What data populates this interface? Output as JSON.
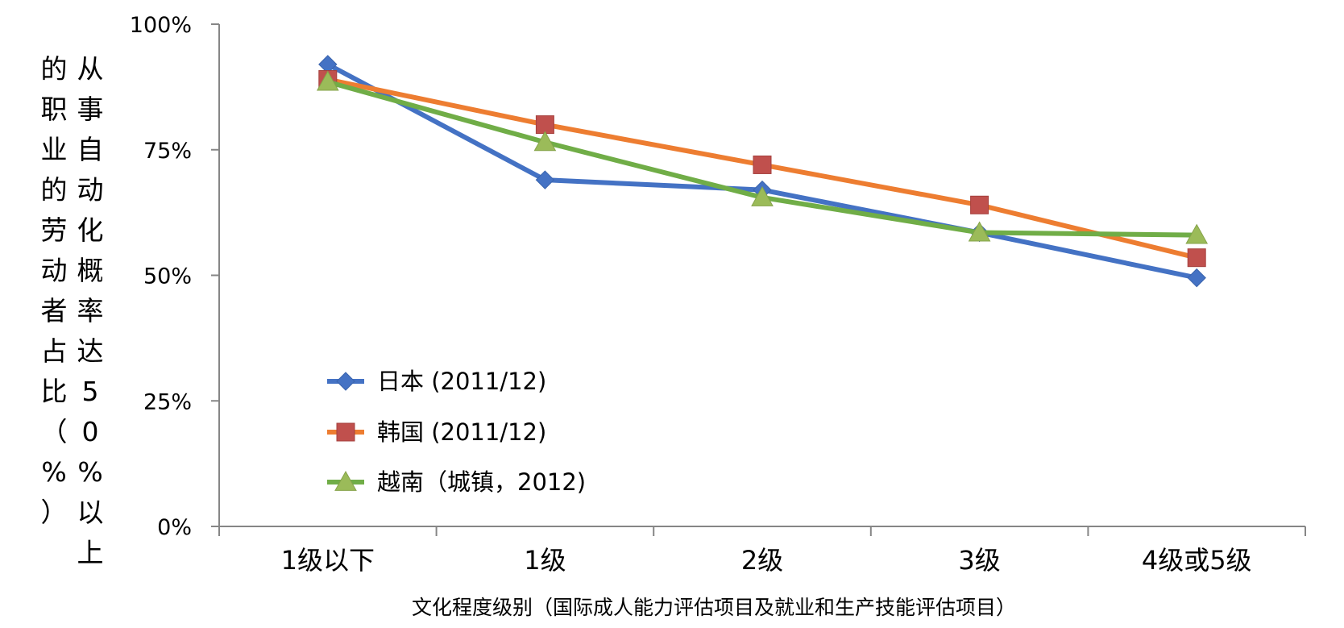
{
  "chart_data": {
    "type": "line",
    "title": "",
    "xlabel": "文化程度级别（国际成人能力评估项目及就业和生产技能评估项目）",
    "ylabel_col1": "从事自动化概率达50%以上",
    "ylabel_col2": "的职业的劳动者占比（%）",
    "ylim": [
      0,
      100
    ],
    "yticks": [
      "0%",
      "25%",
      "50%",
      "75%",
      "100%"
    ],
    "ytick_values": [
      0,
      25,
      50,
      75,
      100
    ],
    "categories": [
      "1级以下",
      "1级",
      "2级",
      "3级",
      "4级或5级"
    ],
    "legend_position": "bottom-left",
    "grid": false,
    "series": [
      {
        "name": "日本 (2011/12)",
        "color": "#4472C4",
        "marker": "diamond",
        "values": [
          92,
          69,
          67,
          58.5,
          49.5
        ]
      },
      {
        "name": "韩国 (2011/12)",
        "color": "#ED7D31",
        "marker_color": "#C0504D",
        "marker": "square",
        "values": [
          89,
          80,
          72,
          64,
          53.5
        ]
      },
      {
        "name": "越南（城镇，2012)",
        "color": "#70AD47",
        "marker_color": "#9BBB59",
        "marker": "triangle",
        "values": [
          88.5,
          76.5,
          65.5,
          58.5,
          58
        ]
      }
    ]
  }
}
